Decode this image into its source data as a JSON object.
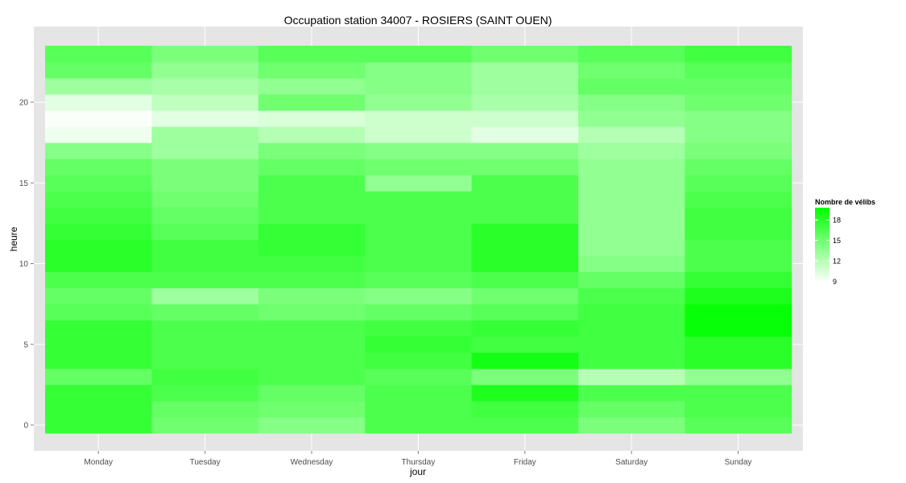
{
  "chart_data": {
    "type": "heatmap",
    "title": "Occupation station 34007 - ROSIERS (SAINT OUEN)",
    "xlabel": "jour",
    "ylabel": "heure",
    "x": [
      "Monday",
      "Tuesday",
      "Wednesday",
      "Thursday",
      "Friday",
      "Saturday",
      "Sunday"
    ],
    "y": [
      0,
      1,
      2,
      3,
      4,
      5,
      6,
      7,
      8,
      9,
      10,
      11,
      12,
      13,
      14,
      15,
      16,
      17,
      18,
      19,
      20,
      21,
      22,
      23
    ],
    "yticks": [
      0,
      5,
      10,
      15,
      20
    ],
    "ylim": [
      -0.5,
      23.5
    ],
    "values": [
      [
        17.5,
        15.0,
        14.0,
        16.5,
        16.5,
        14.5,
        16.0
      ],
      [
        17.5,
        15.5,
        15.0,
        16.5,
        17.0,
        15.5,
        16.5
      ],
      [
        17.5,
        16.5,
        15.5,
        16.5,
        18.5,
        16.5,
        16.5
      ],
      [
        15.5,
        17.0,
        16.5,
        16.0,
        14.5,
        12.0,
        13.5
      ],
      [
        17.5,
        16.5,
        16.5,
        17.0,
        19.0,
        17.0,
        18.0
      ],
      [
        17.5,
        16.5,
        16.5,
        17.5,
        17.0,
        17.0,
        18.0
      ],
      [
        17.5,
        16.5,
        16.5,
        17.0,
        17.5,
        17.0,
        19.5
      ],
      [
        16.0,
        15.5,
        15.0,
        15.5,
        16.0,
        17.0,
        19.5
      ],
      [
        15.5,
        13.0,
        14.5,
        14.0,
        15.0,
        16.5,
        18.5
      ],
      [
        16.5,
        16.5,
        16.5,
        16.0,
        16.5,
        15.5,
        17.5
      ],
      [
        18.0,
        17.0,
        17.0,
        16.5,
        18.0,
        14.0,
        16.5
      ],
      [
        18.0,
        17.0,
        17.5,
        16.5,
        18.0,
        13.5,
        16.5
      ],
      [
        17.5,
        16.0,
        17.5,
        16.5,
        18.0,
        13.5,
        17.0
      ],
      [
        17.0,
        15.5,
        16.5,
        16.5,
        16.5,
        13.5,
        17.0
      ],
      [
        16.5,
        15.0,
        16.5,
        16.5,
        16.5,
        13.5,
        16.5
      ],
      [
        16.0,
        14.5,
        16.5,
        13.5,
        16.5,
        13.5,
        16.0
      ],
      [
        15.5,
        14.5,
        15.5,
        15.0,
        15.0,
        13.5,
        15.5
      ],
      [
        14.0,
        13.0,
        14.5,
        14.0,
        14.0,
        13.0,
        14.5
      ],
      [
        9.5,
        13.0,
        12.0,
        11.0,
        10.0,
        12.0,
        14.0
      ],
      [
        9.0,
        10.0,
        10.5,
        11.0,
        11.0,
        13.5,
        14.0
      ],
      [
        10.0,
        11.5,
        15.0,
        13.5,
        12.5,
        14.0,
        15.0
      ],
      [
        13.0,
        12.5,
        13.5,
        14.0,
        13.0,
        15.5,
        15.5
      ],
      [
        15.5,
        13.5,
        15.0,
        14.0,
        13.0,
        15.0,
        16.0
      ],
      [
        16.0,
        14.5,
        16.0,
        16.0,
        15.0,
        16.0,
        17.0
      ]
    ],
    "color_scale": {
      "low": "#ffffff",
      "high": "#00ff00",
      "min": 8.8,
      "max": 19.8
    },
    "legend": {
      "title": "Nombre de vélibs",
      "ticks": [
        9,
        12,
        15,
        18
      ],
      "placement": "right"
    },
    "grid": true,
    "panel_color": "#e5e5e5",
    "grid_color": "#ffffff"
  }
}
